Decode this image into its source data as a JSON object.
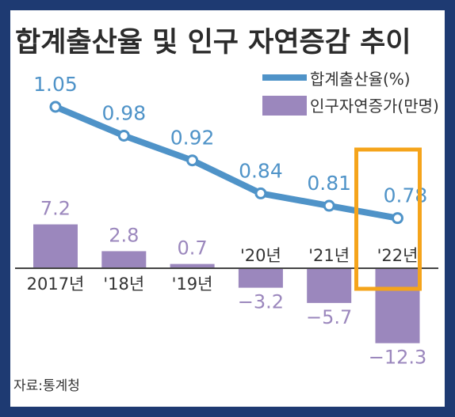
{
  "chart_data": {
    "type": "bar+line",
    "title": "합계출산율 및 인구 자연증감 추이",
    "categories": [
      "2017년",
      "'18년",
      "'19년",
      "'20년",
      "'21년",
      "'22년"
    ],
    "series": [
      {
        "name": "합계출산율(%)",
        "type": "line",
        "values": [
          1.05,
          0.98,
          0.92,
          0.84,
          0.81,
          0.78
        ],
        "labels": [
          "1.05",
          "0.98",
          "0.92",
          "0.84",
          "0.81",
          "0.78"
        ]
      },
      {
        "name": "인구자연증가(만명)",
        "type": "bar",
        "values": [
          7.2,
          2.8,
          0.7,
          -3.2,
          -5.7,
          -12.3
        ],
        "labels": [
          "7.2",
          "2.8",
          "0.7",
          "−3.2",
          "−5.7",
          "−12.3"
        ]
      }
    ],
    "legend_position": "top-right",
    "highlight_category": "'22년",
    "source": "자료:통계청",
    "colors": {
      "line": "#4f93c8",
      "bar": "#9b87bd",
      "highlight": "#f5a41b",
      "text": "#333333",
      "background_frame": "#1e3a72"
    }
  }
}
